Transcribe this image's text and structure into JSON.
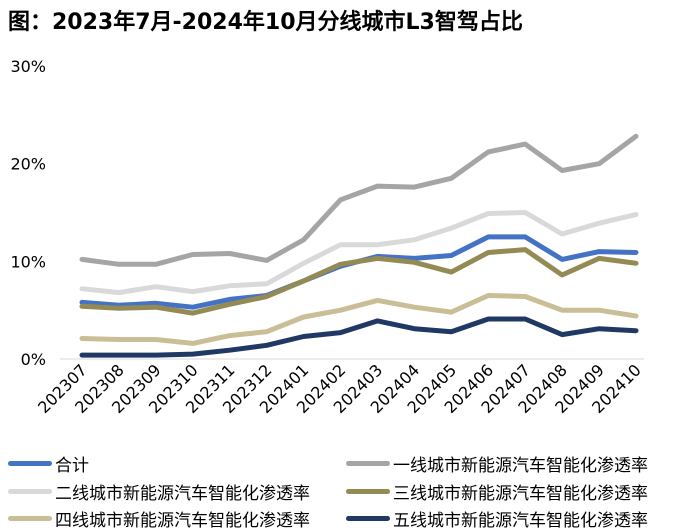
{
  "title": "图：2023年7月-2024年10月分线城市L3智驾占比",
  "chart_data": {
    "type": "line",
    "title": "图：2023年7月-2024年10月分线城市L3智驾占比",
    "xlabel": "",
    "ylabel": "",
    "categories": [
      "202307",
      "202308",
      "202309",
      "202310",
      "202311",
      "202312",
      "202401",
      "202402",
      "202403",
      "202404",
      "202405",
      "202406",
      "202407",
      "202408",
      "202409",
      "202410"
    ],
    "ylim": [
      0,
      30
    ],
    "yticks": [
      0,
      10,
      20,
      30
    ],
    "ytick_labels": [
      "0%",
      "10%",
      "20%",
      "30%"
    ],
    "grid": false,
    "legend_position": "bottom",
    "series": [
      {
        "name": "合计",
        "color": "#4472C4",
        "values": [
          5.8,
          5.5,
          5.7,
          5.3,
          6.1,
          6.5,
          8.0,
          9.5,
          10.5,
          10.3,
          10.6,
          12.5,
          12.5,
          10.2,
          11.0,
          10.9
        ]
      },
      {
        "name": "一线城市新能源汽车智能化渗透率",
        "color": "#A5A5A5",
        "values": [
          10.2,
          9.7,
          9.7,
          10.7,
          10.8,
          10.1,
          12.2,
          16.3,
          17.7,
          17.6,
          18.5,
          21.2,
          22.0,
          19.3,
          20.0,
          22.8
        ]
      },
      {
        "name": "二线城市新能源汽车智能化渗透率",
        "color": "#D9D9D9",
        "values": [
          7.2,
          6.8,
          7.4,
          6.9,
          7.5,
          7.7,
          9.8,
          11.7,
          11.7,
          12.2,
          13.4,
          14.9,
          15.0,
          12.8,
          13.9,
          14.8
        ]
      },
      {
        "name": "三线城市新能源汽车智能化渗透率",
        "color": "#948A54",
        "values": [
          5.4,
          5.2,
          5.3,
          4.7,
          5.6,
          6.4,
          8.0,
          9.7,
          10.3,
          9.9,
          8.9,
          10.9,
          11.2,
          8.6,
          10.3,
          9.8
        ]
      },
      {
        "name": "四线城市新能源汽车智能化渗透率",
        "color": "#C9BE95",
        "values": [
          2.1,
          2.0,
          2.0,
          1.6,
          2.4,
          2.8,
          4.3,
          5.0,
          6.0,
          5.3,
          4.8,
          6.5,
          6.4,
          5.0,
          5.0,
          4.4
        ]
      },
      {
        "name": "五线城市新能源汽车智能化渗透率",
        "color": "#203864",
        "values": [
          0.4,
          0.4,
          0.4,
          0.5,
          0.9,
          1.4,
          2.3,
          2.7,
          3.9,
          3.1,
          2.8,
          4.1,
          4.1,
          2.5,
          3.1,
          2.9
        ]
      }
    ]
  }
}
